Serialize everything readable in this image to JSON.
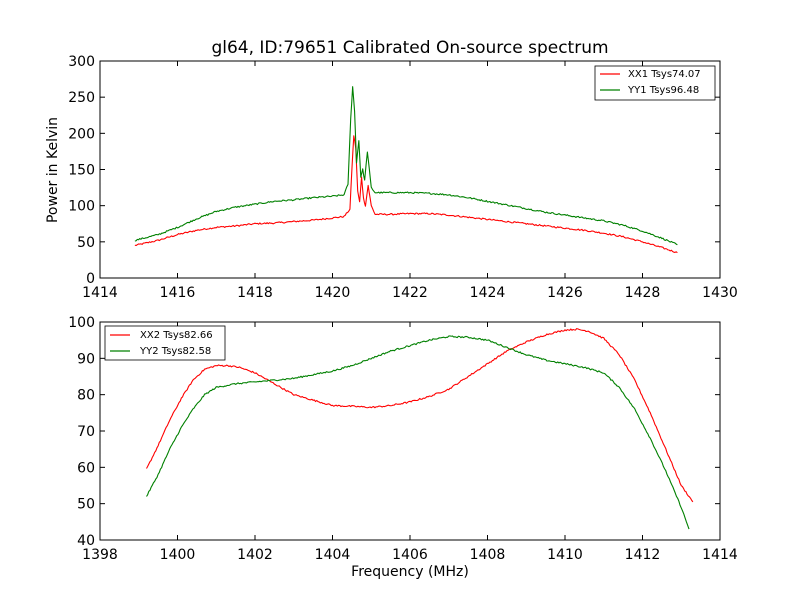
{
  "chart_data": [
    {
      "type": "line",
      "title": "gl64, ID:79651 Calibrated On-source spectrum",
      "xlabel": "",
      "ylabel": "Power in Kelvin",
      "xlim": [
        1414,
        1430
      ],
      "ylim": [
        0,
        300
      ],
      "xticks": [
        "1414",
        "1416",
        "1418",
        "1420",
        "1422",
        "1424",
        "1426",
        "1428",
        "1430"
      ],
      "yticks": [
        "0",
        "50",
        "100",
        "150",
        "200",
        "250",
        "300"
      ],
      "legend_position": "top-right",
      "series": [
        {
          "name": "XX1 Tsys74.07",
          "color": "#ff0000",
          "points": [
            [
              1414.9,
              45
            ],
            [
              1415.5,
              52
            ],
            [
              1416,
              60
            ],
            [
              1416.5,
              66
            ],
            [
              1417,
              70
            ],
            [
              1417.5,
              72
            ],
            [
              1418,
              75
            ],
            [
              1418.5,
              76
            ],
            [
              1419,
              78
            ],
            [
              1419.5,
              80
            ],
            [
              1420,
              83
            ],
            [
              1420.3,
              85
            ],
            [
              1420.45,
              95
            ],
            [
              1420.5,
              150
            ],
            [
              1420.55,
              197
            ],
            [
              1420.6,
              180
            ],
            [
              1420.65,
              120
            ],
            [
              1420.7,
              105
            ],
            [
              1420.75,
              140
            ],
            [
              1420.8,
              110
            ],
            [
              1420.85,
              100
            ],
            [
              1420.92,
              128
            ],
            [
              1421,
              100
            ],
            [
              1421.1,
              88
            ],
            [
              1421.5,
              88
            ],
            [
              1422,
              89
            ],
            [
              1422.5,
              89
            ],
            [
              1423,
              87
            ],
            [
              1423.5,
              84
            ],
            [
              1424,
              81
            ],
            [
              1424.5,
              78
            ],
            [
              1425,
              75
            ],
            [
              1425.5,
              72
            ],
            [
              1426,
              69
            ],
            [
              1426.5,
              66
            ],
            [
              1427,
              62
            ],
            [
              1427.5,
              57
            ],
            [
              1428,
              50
            ],
            [
              1428.5,
              42
            ],
            [
              1428.9,
              35
            ]
          ]
        },
        {
          "name": "YY1 Tsys96.48",
          "color": "#008000",
          "points": [
            [
              1414.9,
              52
            ],
            [
              1415.5,
              60
            ],
            [
              1416,
              70
            ],
            [
              1416.5,
              82
            ],
            [
              1417,
              92
            ],
            [
              1417.5,
              98
            ],
            [
              1418,
              102
            ],
            [
              1418.5,
              106
            ],
            [
              1419,
              108
            ],
            [
              1419.5,
              111
            ],
            [
              1420,
              113
            ],
            [
              1420.3,
              115
            ],
            [
              1420.4,
              130
            ],
            [
              1420.47,
              220
            ],
            [
              1420.52,
              265
            ],
            [
              1420.57,
              230
            ],
            [
              1420.62,
              160
            ],
            [
              1420.68,
              190
            ],
            [
              1420.73,
              140
            ],
            [
              1420.78,
              150
            ],
            [
              1420.83,
              135
            ],
            [
              1420.9,
              175
            ],
            [
              1420.95,
              150
            ],
            [
              1421,
              125
            ],
            [
              1421.1,
              118
            ],
            [
              1421.5,
              118
            ],
            [
              1422,
              118
            ],
            [
              1422.5,
              117
            ],
            [
              1423,
              115
            ],
            [
              1423.5,
              111
            ],
            [
              1424,
              106
            ],
            [
              1424.5,
              101
            ],
            [
              1425,
              96
            ],
            [
              1425.5,
              91
            ],
            [
              1426,
              87
            ],
            [
              1426.5,
              83
            ],
            [
              1427,
              79
            ],
            [
              1427.5,
              73
            ],
            [
              1428,
              65
            ],
            [
              1428.5,
              55
            ],
            [
              1428.9,
              46
            ]
          ]
        }
      ]
    },
    {
      "type": "line",
      "title": "",
      "xlabel": "Frequency (MHz)",
      "ylabel": "",
      "xlim": [
        1398,
        1414
      ],
      "ylim": [
        40,
        100
      ],
      "xticks": [
        "1398",
        "1400",
        "1402",
        "1404",
        "1406",
        "1408",
        "1410",
        "1412",
        "1414"
      ],
      "yticks": [
        "40",
        "50",
        "60",
        "70",
        "80",
        "90",
        "100"
      ],
      "legend_position": "top-left",
      "series": [
        {
          "name": "XX2 Tsys82.66",
          "color": "#ff0000",
          "points": [
            [
              1399.2,
              59.5
            ],
            [
              1399.5,
              66
            ],
            [
              1399.8,
              73
            ],
            [
              1400.1,
              79
            ],
            [
              1400.4,
              84
            ],
            [
              1400.7,
              87
            ],
            [
              1401,
              88
            ],
            [
              1401.3,
              88
            ],
            [
              1401.6,
              87.5
            ],
            [
              1402,
              86
            ],
            [
              1402.5,
              83
            ],
            [
              1403,
              80
            ],
            [
              1403.5,
              78.5
            ],
            [
              1404,
              77
            ],
            [
              1404.5,
              76.8
            ],
            [
              1405,
              76.5
            ],
            [
              1405.5,
              77
            ],
            [
              1406,
              78
            ],
            [
              1406.5,
              79.5
            ],
            [
              1407,
              81.5
            ],
            [
              1407.5,
              85
            ],
            [
              1408,
              88.5
            ],
            [
              1408.5,
              92
            ],
            [
              1409,
              94.5
            ],
            [
              1409.5,
              96.5
            ],
            [
              1410,
              97.8
            ],
            [
              1410.3,
              98
            ],
            [
              1410.6,
              97.5
            ],
            [
              1411,
              95.5
            ],
            [
              1411.4,
              91
            ],
            [
              1411.8,
              84
            ],
            [
              1412.2,
              75
            ],
            [
              1412.6,
              65
            ],
            [
              1413,
              55
            ],
            [
              1413.3,
              50.5
            ]
          ]
        },
        {
          "name": "YY2 Tsys82.58",
          "color": "#008000",
          "points": [
            [
              1399.2,
              52
            ],
            [
              1399.5,
              58
            ],
            [
              1399.8,
              65
            ],
            [
              1400.1,
              71
            ],
            [
              1400.4,
              76
            ],
            [
              1400.7,
              80
            ],
            [
              1401,
              82
            ],
            [
              1401.5,
              83
            ],
            [
              1402,
              83.5
            ],
            [
              1402.5,
              84
            ],
            [
              1403,
              84.5
            ],
            [
              1403.5,
              85.5
            ],
            [
              1404,
              86.5
            ],
            [
              1404.5,
              88
            ],
            [
              1405,
              90
            ],
            [
              1405.5,
              92
            ],
            [
              1406,
              93.5
            ],
            [
              1406.5,
              95
            ],
            [
              1407,
              96
            ],
            [
              1407.5,
              95.8
            ],
            [
              1408,
              95
            ],
            [
              1408.5,
              93
            ],
            [
              1409,
              91
            ],
            [
              1409.5,
              89.5
            ],
            [
              1410,
              88.5
            ],
            [
              1410.5,
              87.5
            ],
            [
              1411,
              86
            ],
            [
              1411.4,
              82
            ],
            [
              1411.8,
              76
            ],
            [
              1412.2,
              68
            ],
            [
              1412.6,
              59
            ],
            [
              1413,
              49
            ],
            [
              1413.2,
              43
            ]
          ]
        }
      ]
    }
  ]
}
